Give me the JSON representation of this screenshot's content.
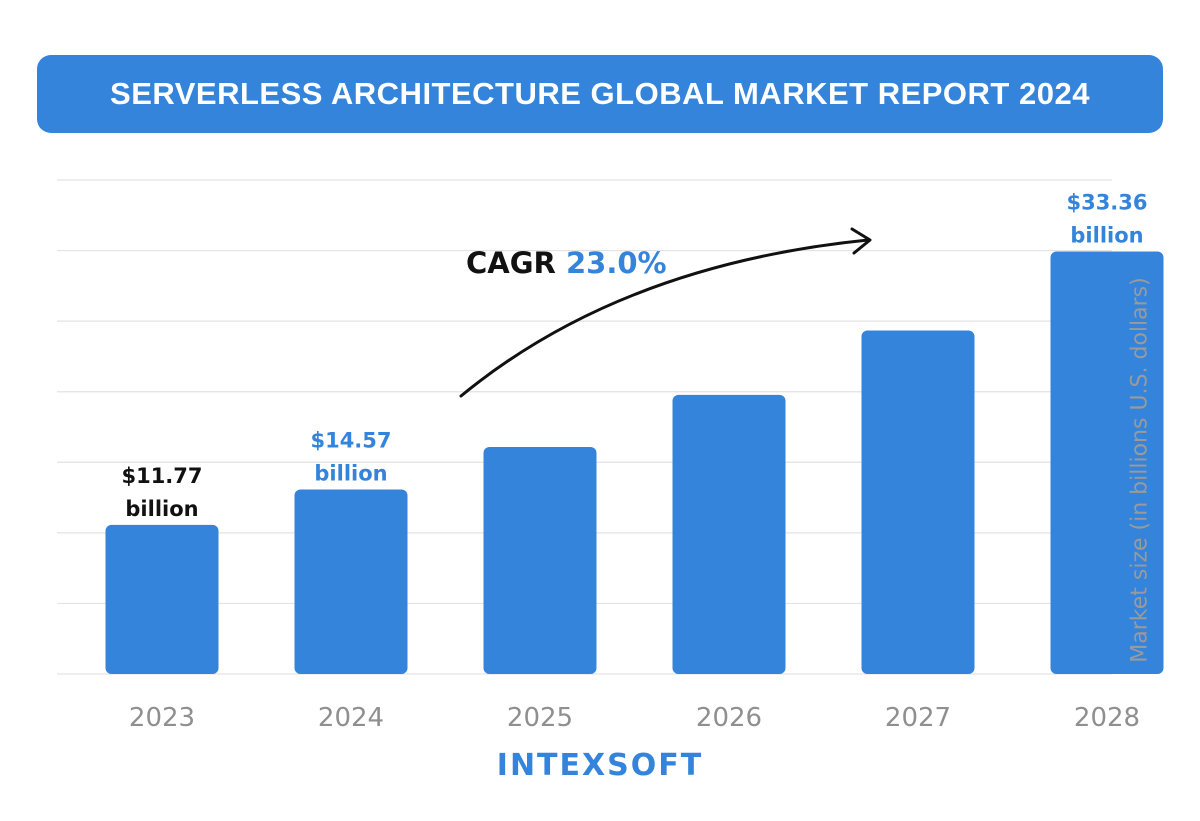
{
  "title": "SERVERLESS ARCHITECTURE GLOBAL MARKET REPORT 2024",
  "annotation": {
    "label": "CAGR",
    "value": "23.0%"
  },
  "logo": "INTEXSOFT",
  "colors": {
    "bar": "#3584db",
    "accent": "#3584db",
    "grid": "#e3e3e3",
    "tick": "#8f8f8f"
  },
  "chart_data": {
    "type": "bar",
    "categories": [
      "2023",
      "2024",
      "2025",
      "2026",
      "2027",
      "2028"
    ],
    "values": [
      11.77,
      14.57,
      17.92,
      22.04,
      27.12,
      33.36
    ],
    "data_labels": [
      {
        "index": 0,
        "value": "$11.77",
        "unit": "billion",
        "color": "#111111"
      },
      {
        "index": 1,
        "value": "$14.57",
        "unit": "billion",
        "color": "#3584db"
      },
      {
        "index": 5,
        "value": "$33.36",
        "unit": "billion",
        "color": "#3584db"
      }
    ],
    "ylabel": "Market size (in billions U.S. dollars)",
    "xlabel": "",
    "ylim": [
      0,
      39
    ],
    "grid": true
  }
}
